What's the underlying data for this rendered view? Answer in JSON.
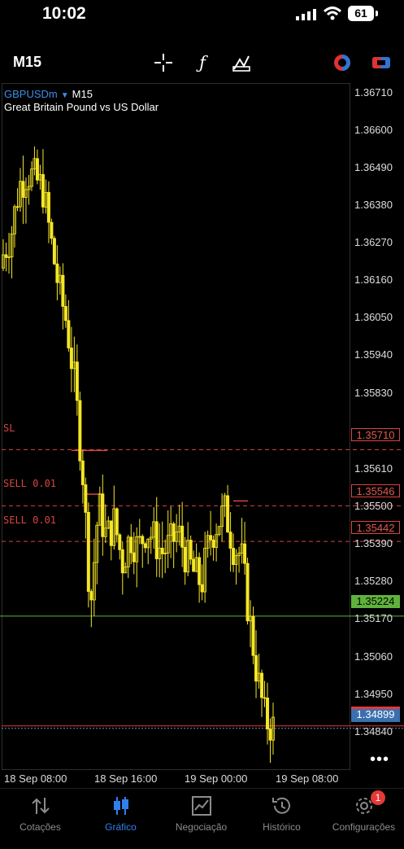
{
  "status": {
    "time": "10:02",
    "battery": "61"
  },
  "toolbar": {
    "timeframe": "M15"
  },
  "chart": {
    "symbol": "GBPUSDm",
    "symbol_timeframe": "M15",
    "description": "Great Britain Pound vs US Dollar",
    "price_scale": [
      "1.36710",
      "1.36600",
      "1.36490",
      "1.36380",
      "1.36270",
      "1.36160",
      "1.36050",
      "1.35940",
      "1.35830",
      "1.35610",
      "1.35500",
      "1.35390",
      "1.35280",
      "1.35170",
      "1.35060",
      "1.34950",
      "1.34840"
    ],
    "tags": {
      "sl": "1.35710",
      "sell1": "1.35546",
      "sell2": "1.35442",
      "green": "1.35224",
      "bid": "1.34899"
    },
    "trade_labels": {
      "sl": "SL",
      "sell1": "SELL 0.01",
      "sell2": "SELL 0.01"
    },
    "time_labels": [
      "18 Sep 08:00",
      "18 Sep 16:00",
      "19 Sep 00:00",
      "19 Sep 08:00"
    ],
    "colors": {
      "candle": "#f5e625",
      "sell_line": "#d64541",
      "green_line": "#5fb33a",
      "bid_tag": "#3a6fb0"
    }
  },
  "chart_data": {
    "type": "candlestick",
    "symbol": "GBPUSDm",
    "timeframe": "M15",
    "yrange": [
      1.3477,
      1.3678
    ],
    "ohlc_close_trace": [
      1.3628,
      1.3634,
      1.3648,
      1.3652,
      1.365,
      1.3647,
      1.3632,
      1.3618,
      1.3608,
      1.359,
      1.3565,
      1.3525,
      1.3555,
      1.3545,
      1.355,
      1.3538,
      1.3546,
      1.3542,
      1.3548,
      1.3545,
      1.3541,
      1.3543,
      1.3547,
      1.354,
      1.3535,
      1.3532,
      1.3545,
      1.355,
      1.3553,
      1.3543,
      1.354,
      1.3522,
      1.3505,
      1.3492,
      1.349
    ],
    "levels": {
      "SL": 1.3571,
      "SELL 0.01 (1)": 1.35546,
      "SELL 0.01 (2)": 1.35442,
      "green": 1.35224,
      "bid": 1.34899
    },
    "x_ticks": [
      "18 Sep 08:00",
      "18 Sep 16:00",
      "19 Sep 00:00",
      "19 Sep 08:00"
    ]
  },
  "tabs": [
    {
      "label": "Cotações"
    },
    {
      "label": "Gráfico"
    },
    {
      "label": "Negociação"
    },
    {
      "label": "Histórico"
    },
    {
      "label": "Configurações",
      "badge": "1"
    }
  ]
}
